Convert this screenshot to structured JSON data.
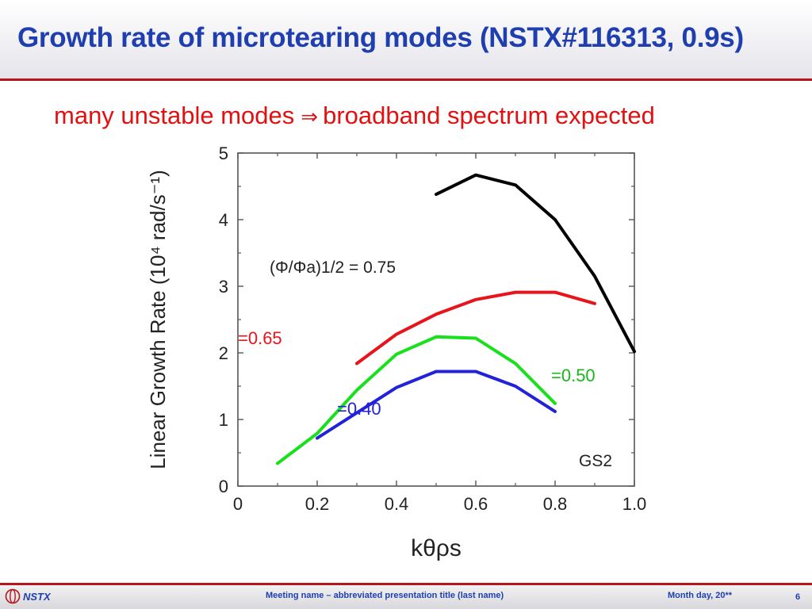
{
  "slide": {
    "title": "Growth rate of microtearing modes (NSTX#116313, 0.9s)",
    "subtitle_left": "many unstable modes",
    "subtitle_arrow": "⇒",
    "subtitle_right": "broadband spectrum expected"
  },
  "footer": {
    "logo_text": "NSTX",
    "meeting": "Meeting name  – abbreviated presentation title (last name)",
    "date": "Month day, 20**",
    "page": "6"
  },
  "colors": {
    "title": "#1f3fb0",
    "subtitle": "#e31010",
    "rule": "#b8141b"
  },
  "chart_data": {
    "type": "line",
    "xlabel": "kθρs",
    "ylabel": "Linear Growth Rate (10⁴ rad/s⁻¹)",
    "xlim": [
      0,
      1.0
    ],
    "ylim": [
      0,
      5
    ],
    "xticks": [
      "0",
      "0.2",
      "0.4",
      "0.6",
      "0.8",
      "1.0"
    ],
    "yticks": [
      "0",
      "1",
      "2",
      "3",
      "4",
      "5"
    ],
    "grid": false,
    "annotation_code": "GS2",
    "series": [
      {
        "label": "(Φ/Φa)1/2 = 0.75",
        "color": "#000000",
        "x": [
          0.5,
          0.6,
          0.7,
          0.8,
          0.9,
          1.0
        ],
        "y": [
          4.38,
          4.67,
          4.52,
          4.0,
          3.15,
          2.02
        ]
      },
      {
        "label": "=0.65",
        "color": "#e8141b",
        "x": [
          0.3,
          0.4,
          0.5,
          0.6,
          0.7,
          0.8,
          0.9
        ],
        "y": [
          1.84,
          2.28,
          2.58,
          2.8,
          2.91,
          2.91,
          2.74
        ]
      },
      {
        "label": "=0.50",
        "color": "#19e01c",
        "x": [
          0.1,
          0.2,
          0.3,
          0.4,
          0.5,
          0.6,
          0.7,
          0.8
        ],
        "y": [
          0.34,
          0.79,
          1.44,
          1.98,
          2.24,
          2.22,
          1.84,
          1.24
        ]
      },
      {
        "label": "=0.40",
        "color": "#2222d6",
        "x": [
          0.2,
          0.3,
          0.4,
          0.5,
          0.6,
          0.7,
          0.8
        ],
        "y": [
          0.72,
          1.1,
          1.48,
          1.72,
          1.72,
          1.5,
          1.12
        ]
      }
    ]
  }
}
